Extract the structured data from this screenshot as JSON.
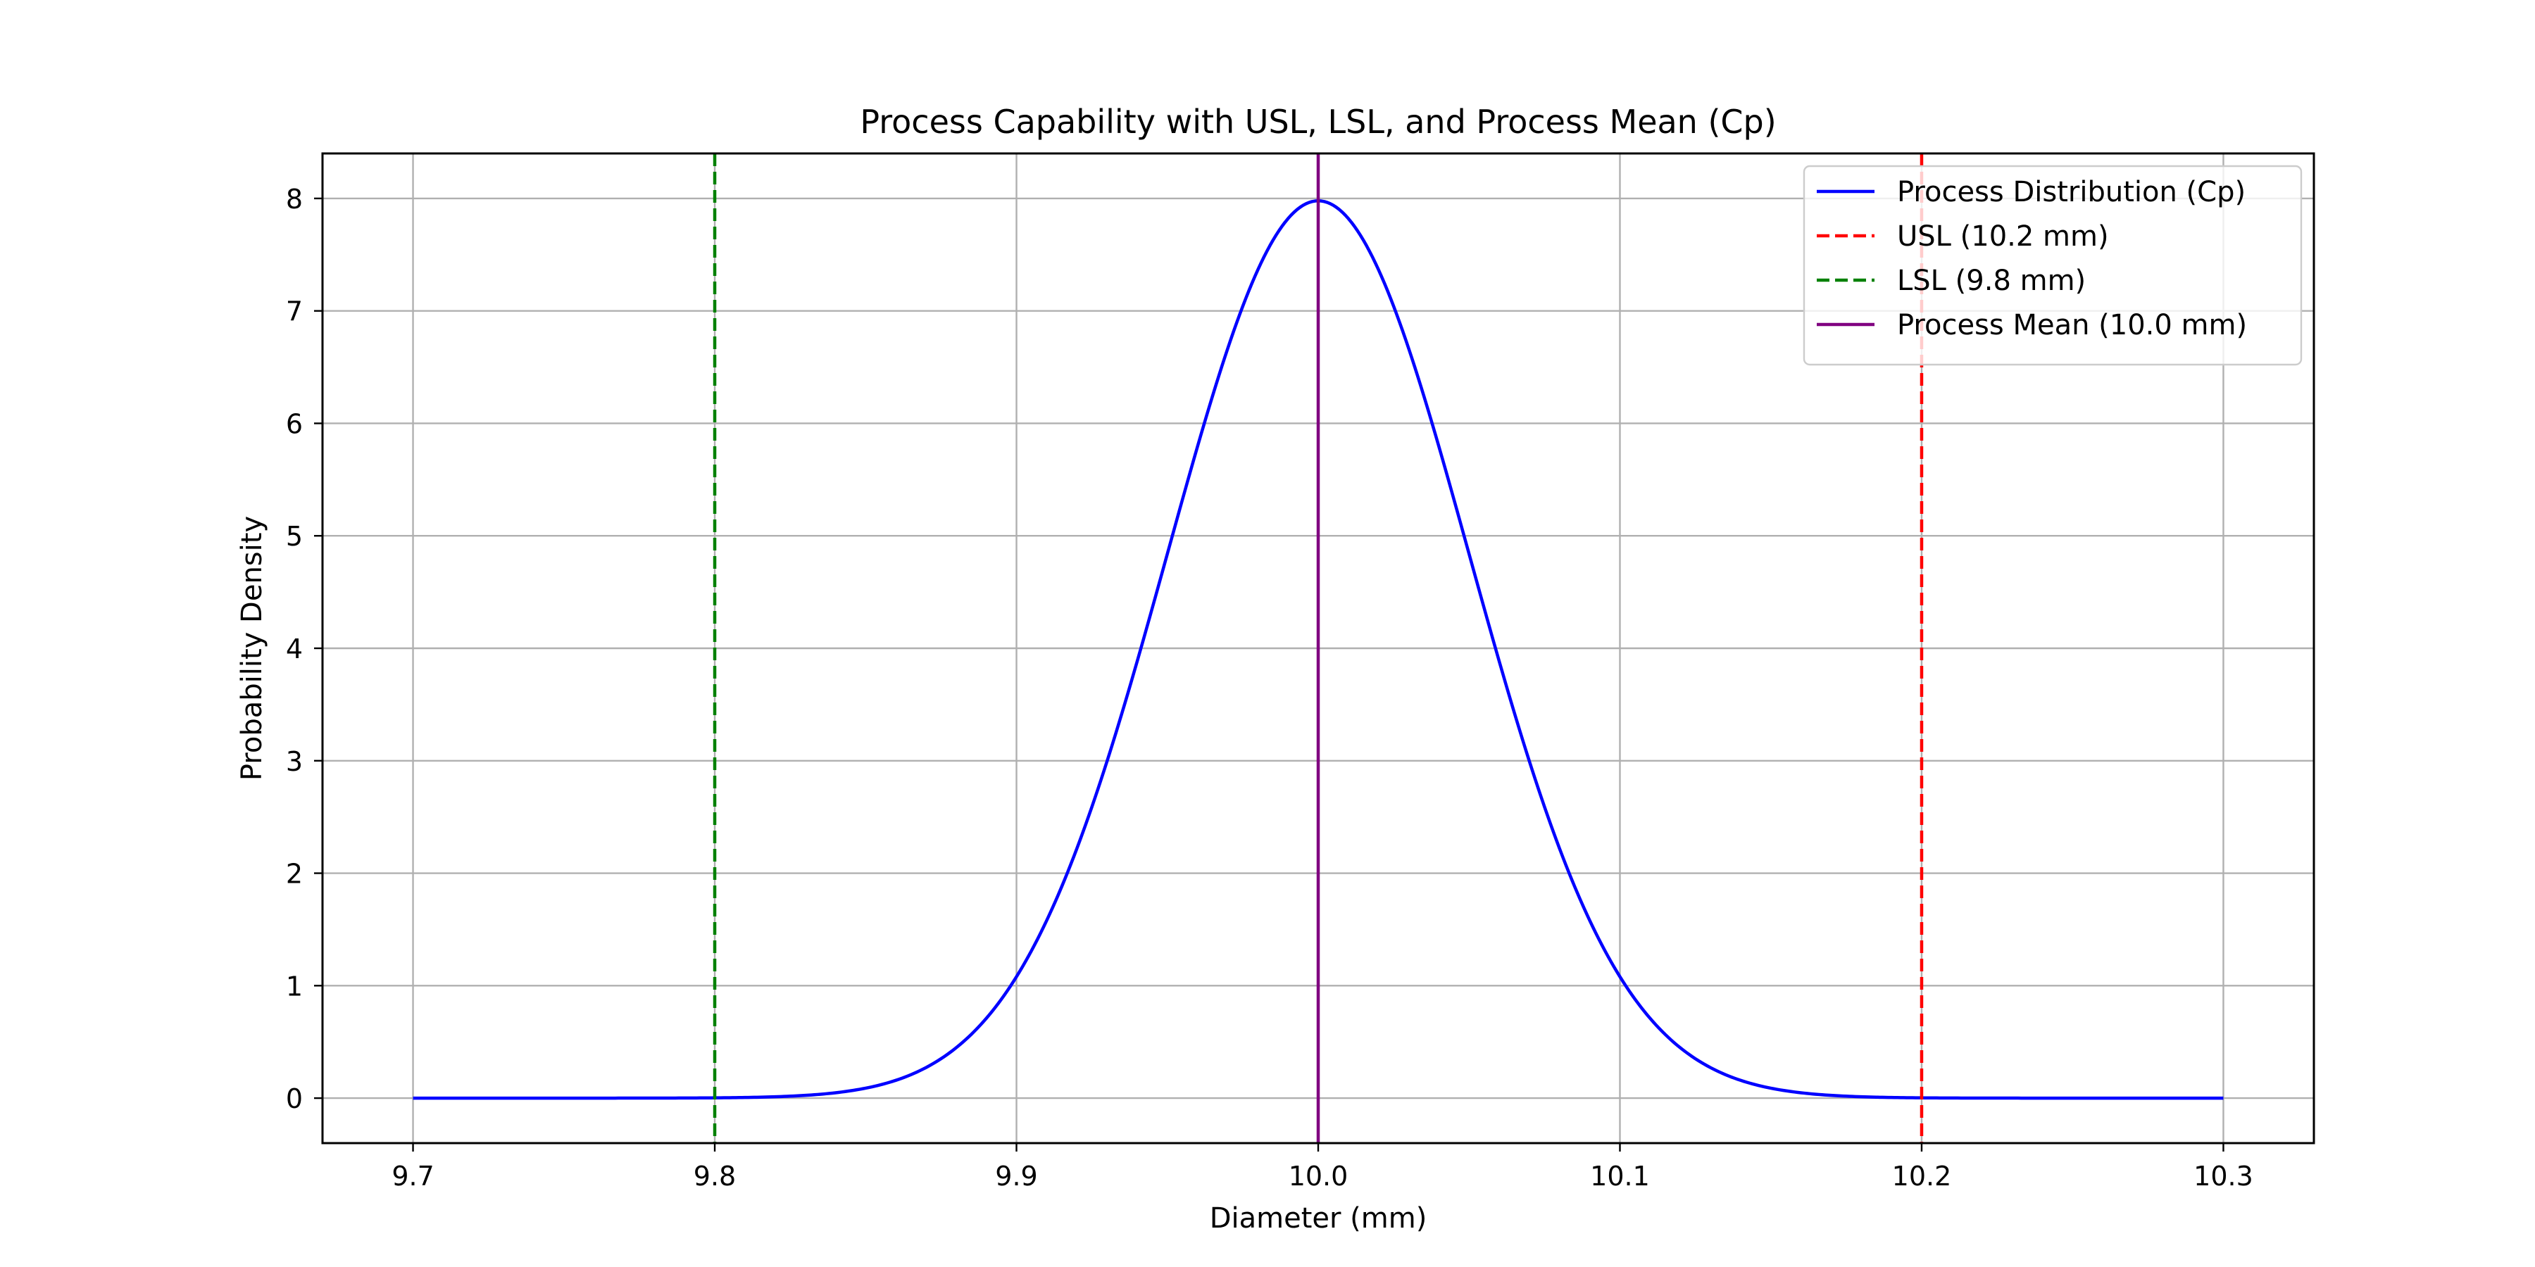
{
  "chart_data": {
    "type": "line",
    "title": "Process Capability with USL, LSL, and Process Mean (Cp)",
    "xlabel": "Diameter (mm)",
    "ylabel": "Probability Density",
    "xlim": [
      9.67,
      10.33
    ],
    "ylim": [
      -0.4,
      8.4
    ],
    "xticks": [
      9.7,
      9.8,
      9.9,
      10.0,
      10.1,
      10.2,
      10.3
    ],
    "xtick_labels": [
      "9.7",
      "9.8",
      "9.9",
      "10.0",
      "10.1",
      "10.2",
      "10.3"
    ],
    "yticks": [
      0,
      1,
      2,
      3,
      4,
      5,
      6,
      7,
      8
    ],
    "ytick_labels": [
      "0",
      "1",
      "2",
      "3",
      "4",
      "5",
      "6",
      "7",
      "8"
    ],
    "grid": true,
    "legend_position": "top-right",
    "series": [
      {
        "name": "Process Distribution (Cp)",
        "kind": "normal-curve",
        "color": "#0000ff",
        "style": "solid",
        "x_range": [
          9.7,
          10.3
        ],
        "mean": 10.0,
        "std": 0.05
      },
      {
        "name": "USL (10.2 mm)",
        "kind": "vline",
        "x": 10.2,
        "color": "#ff0000",
        "style": "dashed"
      },
      {
        "name": "LSL (9.8 mm)",
        "kind": "vline",
        "x": 9.8,
        "color": "#008000",
        "style": "dashed"
      },
      {
        "name": "Process Mean (10.0 mm)",
        "kind": "vline",
        "x": 10.0,
        "color": "#800080",
        "style": "solid"
      }
    ]
  }
}
